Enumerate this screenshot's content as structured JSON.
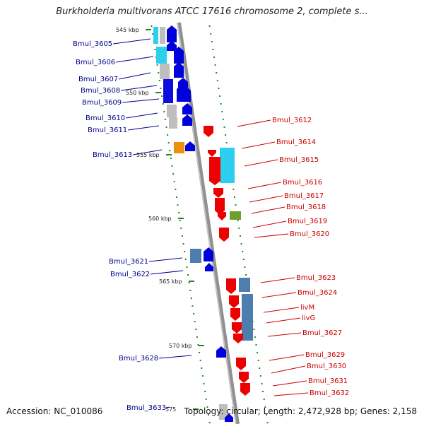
{
  "title": "Burkholderia multivorans ATCC 17616 chromosome 2, complete s...",
  "footer": {
    "accession": "Accession: NC_010086",
    "summary": "Topology: circular; Length: 2,472,928 bp; Genes: 2,158"
  },
  "ticks": [
    "545 kbp",
    "550 kbp",
    "555 kbp",
    "560 kbp",
    "565 kbp",
    "570 kbp",
    "575"
  ],
  "left_genes": [
    "Bmul_3605",
    "Bmul_3606",
    "Bmul_3607",
    "Bmul_3608",
    "Bmul_3609",
    "Bmul_3610",
    "Bmul_3611",
    "Bmul_3613",
    "Bmul_3621",
    "Bmul_3622",
    "Bmul_3628",
    "Bmul_3633"
  ],
  "right_genes": [
    "Bmul_3612",
    "Bmul_3614",
    "Bmul_3615",
    "Bmul_3616",
    "Bmul_3617",
    "Bmul_3618",
    "Bmul_3619",
    "Bmul_3620",
    "Bmul_3623",
    "Bmul_3624",
    "livM",
    "livG",
    "Bmul_3627",
    "Bmul_3629",
    "Bmul_3630",
    "Bmul_3631",
    "Bmul_3632"
  ],
  "colors": {
    "forward_gene": "#0000dd",
    "reverse_gene": "#ee0000",
    "left_label": "#00008b",
    "right_label": "#cc0000",
    "cyan": "#22ccee",
    "grey": "#bbbbbb",
    "steelblue": "#4477aa",
    "orange": "#ee8800",
    "olive": "#669922",
    "axis": "#888888",
    "dots": "#228822"
  }
}
